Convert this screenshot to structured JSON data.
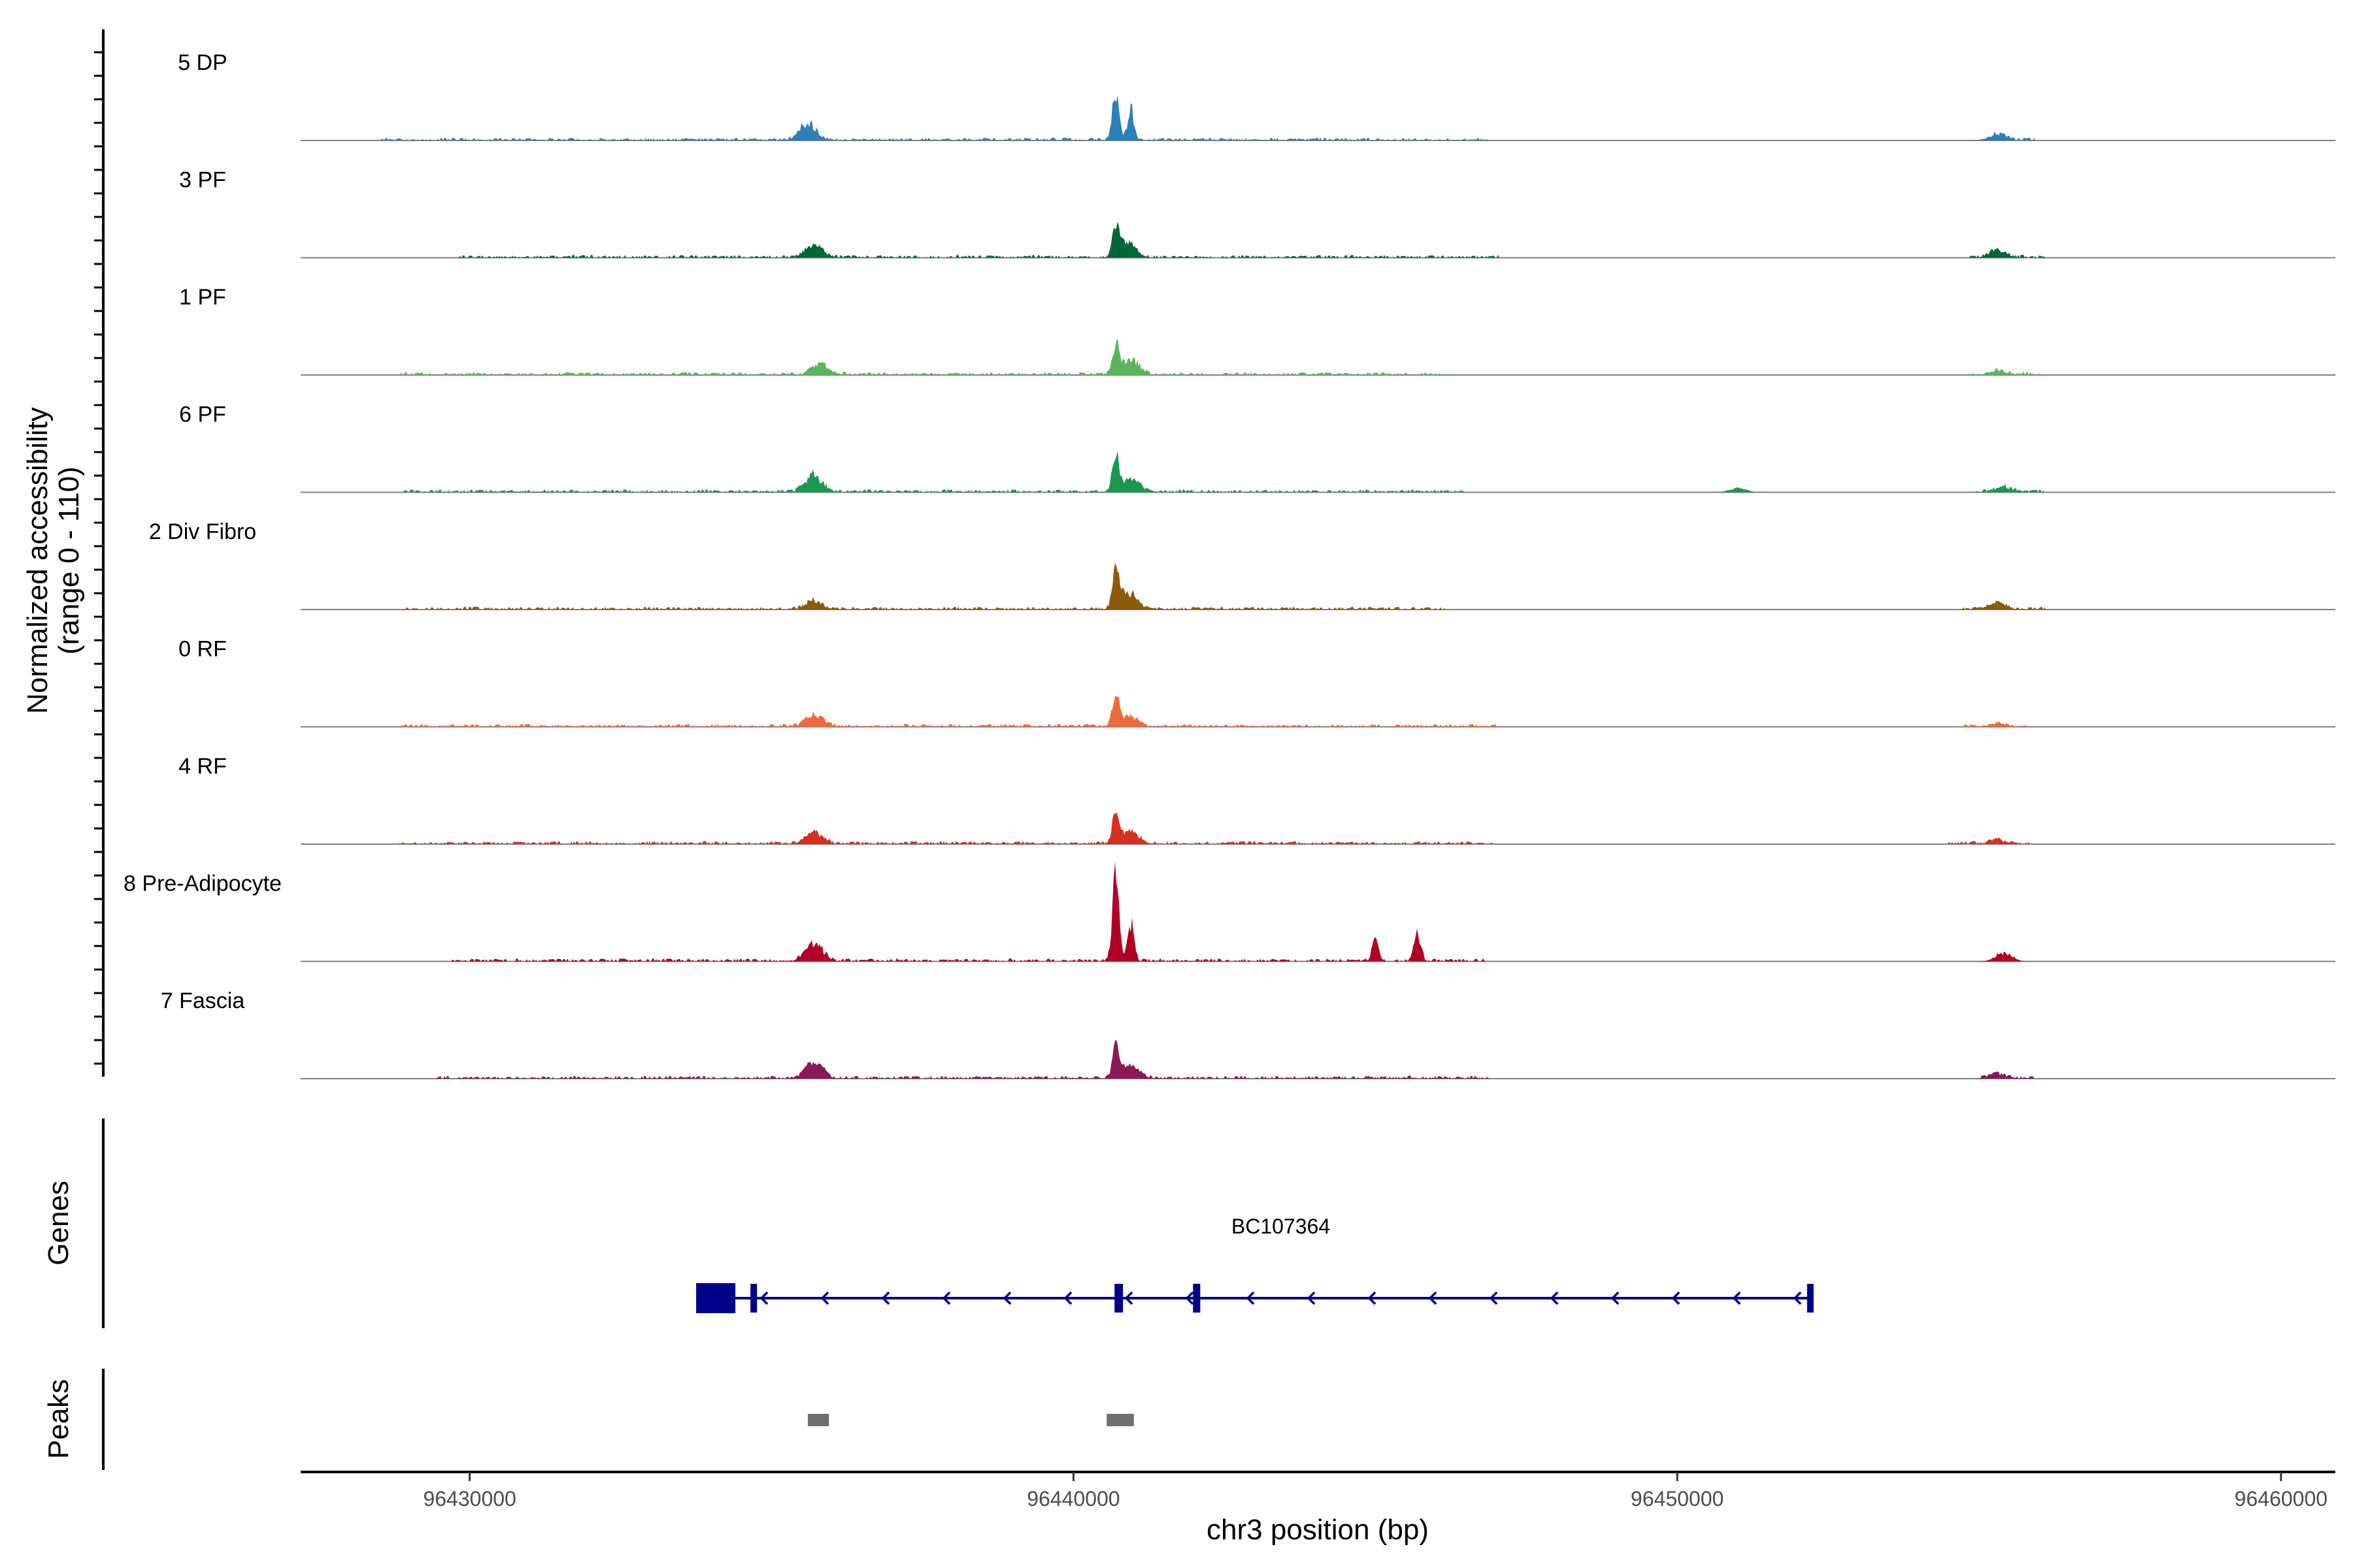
{
  "chart_data": {
    "type": "area",
    "x_domain": [
      96427200,
      96460900
    ],
    "y_range": [
      0,
      110
    ],
    "ylabel": [
      "Normalized accessibility",
      "(range 0 - 110)"
    ],
    "xlabel": "chr3 position (bp)",
    "x_ticks": [
      96430000,
      96440000,
      96450000,
      96460000
    ],
    "x_tick_labels": [
      "96430000",
      "96440000",
      "96450000",
      "96460000"
    ],
    "grid": false,
    "tracks": [
      {
        "name": "5 DP",
        "color": "#2c7fb8",
        "span": [
          96428500,
          96446900
        ],
        "tail": [
          96455200,
          96456000
        ],
        "peaks": [
          [
            96435600,
            0.16
          ],
          [
            96440700,
            0.45
          ],
          [
            96440950,
            0.28
          ],
          [
            96455300,
            0.06
          ]
        ]
      },
      {
        "name": "3 PF",
        "color": "#006837",
        "span": [
          96429800,
          96447100
        ],
        "tail": [
          96454800,
          96456100
        ],
        "peaks": [
          [
            96435700,
            0.12
          ],
          [
            96440700,
            0.27
          ],
          [
            96440900,
            0.14
          ],
          [
            96455300,
            0.07
          ]
        ]
      },
      {
        "name": "1 PF",
        "color": "#5bb65b",
        "span": [
          96428700,
          96446300
        ],
        "tail": [
          96454800,
          96456100
        ],
        "peaks": [
          [
            96435800,
            0.1
          ],
          [
            96440700,
            0.28
          ],
          [
            96440950,
            0.14
          ],
          [
            96455300,
            0.04
          ]
        ]
      },
      {
        "name": "6 PF",
        "color": "#1a9850",
        "span": [
          96428800,
          96446500
        ],
        "tail": [
          96454900,
          96456100
        ],
        "peaks": [
          [
            96435700,
            0.16
          ],
          [
            96440700,
            0.34
          ],
          [
            96440950,
            0.13
          ],
          [
            96451000,
            0.04
          ],
          [
            96455400,
            0.05
          ]
        ]
      },
      {
        "name": "2 Div Fibro",
        "color": "#8c5a0a",
        "span": [
          96428900,
          96446200
        ],
        "tail": [
          96454700,
          96456100
        ],
        "peaks": [
          [
            96435700,
            0.08
          ],
          [
            96440700,
            0.33
          ],
          [
            96440900,
            0.16
          ],
          [
            96455300,
            0.06
          ]
        ]
      },
      {
        "name": "0 RF",
        "color": "#ee6a3c",
        "span": [
          96428800,
          96447000
        ],
        "tail": [
          96454700,
          96455800
        ],
        "peaks": [
          [
            96435700,
            0.12
          ],
          [
            96440700,
            0.31
          ],
          [
            96440900,
            0.1
          ],
          [
            96455300,
            0.03
          ]
        ]
      },
      {
        "name": "4 RF",
        "color": "#d7301f",
        "span": [
          96428800,
          96447000
        ],
        "tail": [
          96454500,
          96455900
        ],
        "peaks": [
          [
            96435700,
            0.11
          ],
          [
            96440700,
            0.29
          ],
          [
            96440950,
            0.12
          ],
          [
            96455300,
            0.04
          ]
        ]
      },
      {
        "name": "8 Pre-Adipocyte",
        "color": "#b10026",
        "span": [
          96429600,
          96446800
        ],
        "tail": [
          96455300,
          96455600
        ],
        "peaks": [
          [
            96435700,
            0.18
          ],
          [
            96440700,
            0.88
          ],
          [
            96440950,
            0.36
          ],
          [
            96445000,
            0.22
          ],
          [
            96445700,
            0.26
          ],
          [
            96455400,
            0.07
          ]
        ]
      },
      {
        "name": "7 Fascia",
        "color": "#8a1a57",
        "span": [
          96429400,
          96447000
        ],
        "tail": [
          96455000,
          96455900
        ],
        "peaks": [
          [
            96435700,
            0.15
          ],
          [
            96440700,
            0.29
          ],
          [
            96440950,
            0.12
          ],
          [
            96455300,
            0.04
          ]
        ]
      }
    ],
    "genes": [
      {
        "name": "BC107364",
        "strand": "-",
        "start": 96433750,
        "end": 96452250,
        "color": "#00008b",
        "exons": [
          [
            96433750,
            96434400
          ],
          [
            96434650,
            96434720
          ],
          [
            96440680,
            96440820
          ],
          [
            96441980,
            96442100
          ],
          [
            96452150,
            96452250
          ]
        ]
      }
    ],
    "peaks_track": [
      [
        96435600,
        96435950
      ],
      [
        96440550,
        96441000
      ]
    ],
    "peaks_color": "#707070"
  },
  "panels": {
    "genes_title": "Genes",
    "peaks_title": "Peaks"
  }
}
